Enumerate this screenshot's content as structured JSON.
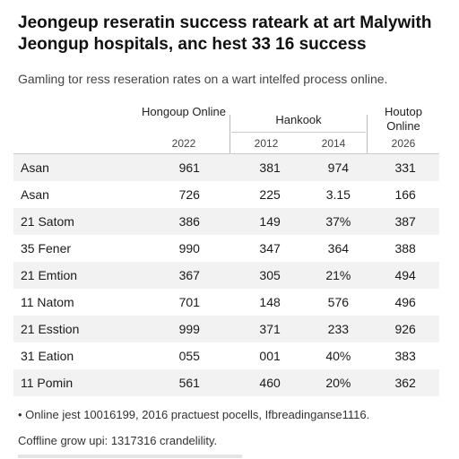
{
  "title": "Jeongeup reseratin success rateark at art Malywith Jeongup hospitals, anc hest 33 16 success",
  "subtitle": "Gamling tor ress reseration rates on a wart intelfed process online.",
  "table": {
    "headers": [
      {
        "name": "Hongoup Online",
        "year": "2022"
      },
      {
        "name": "Hankook",
        "year": "2012"
      },
      {
        "name": "",
        "year": "2014"
      },
      {
        "name": "Houtop Online",
        "year": "2026"
      }
    ],
    "rows": [
      {
        "label": "Asan",
        "values": [
          "961",
          "381",
          "974",
          "331"
        ]
      },
      {
        "label": "Asan",
        "values": [
          "726",
          "225",
          "3.15",
          "166"
        ]
      },
      {
        "label": "21 Satom",
        "values": [
          "386",
          "149",
          "37%",
          "387"
        ]
      },
      {
        "label": "35 Fener",
        "values": [
          "990",
          "347",
          "364",
          "388"
        ]
      },
      {
        "label": "21 Emtion",
        "values": [
          "367",
          "305",
          "21%",
          "494"
        ]
      },
      {
        "label": "11 Natom",
        "values": [
          "701",
          "148",
          "576",
          "496"
        ]
      },
      {
        "label": "21 Esstion",
        "values": [
          "999",
          "371",
          "233",
          "926"
        ]
      },
      {
        "label": "31 Eation",
        "values": [
          "055",
          "001",
          "40%",
          "383"
        ]
      },
      {
        "label": "11 Pomin",
        "values": [
          "561",
          "460",
          "20%",
          "362"
        ]
      }
    ]
  },
  "footnotes": [
    "• Online jest 10016199, 2016 practuest pocells, Ifbreadinganse1116.",
    "Coffline grow upi: 1317316 crandelility."
  ]
}
